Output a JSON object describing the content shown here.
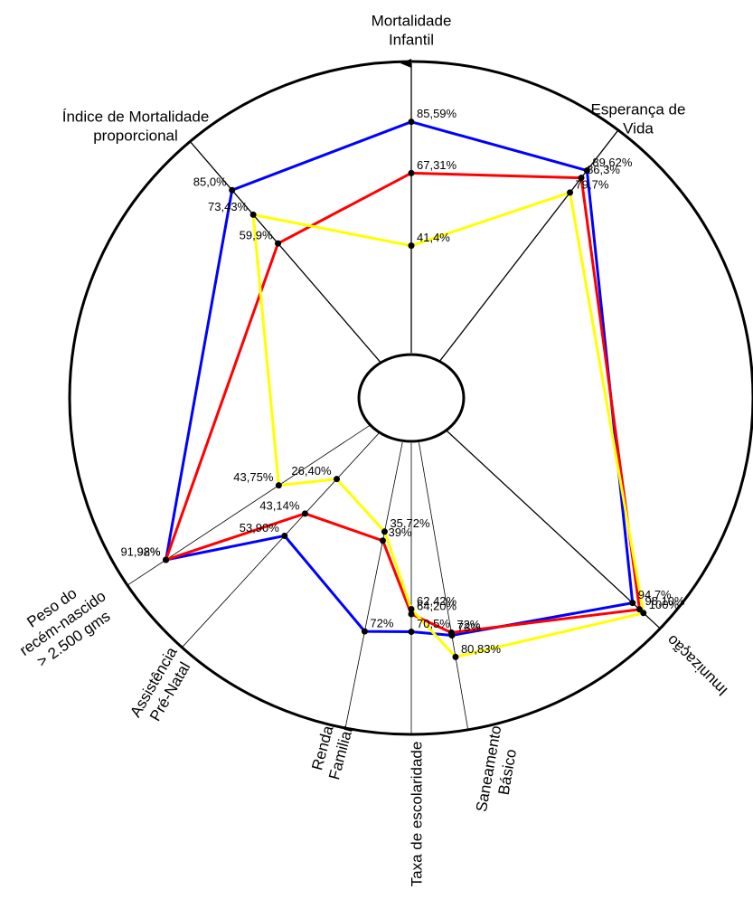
{
  "chart_data": {
    "type": "radar",
    "categories": [
      [
        "Mortalidade",
        "Infantil"
      ],
      [
        "Esperança de",
        "Vida"
      ],
      [
        "Imunização"
      ],
      [
        "Saneamento",
        "Básico"
      ],
      [
        "Taxa de escolaridade"
      ],
      [
        "Renda",
        "Familiar"
      ],
      [
        "Assistência",
        "Pré-Natal"
      ],
      [
        "Peso do",
        "recém-nascido",
        "> 2.500 gms"
      ],
      [
        "Índice de Mortalidade",
        "proporcional"
      ]
    ],
    "series": [
      {
        "color": "#0000ff",
        "values": [
          85.59,
          89.62,
          94.7,
          73,
          70.5,
          72,
          53.9,
          91.98,
          85.0
        ],
        "value_labels": [
          "85,59%",
          "89,62%",
          "94,7%",
          "73%",
          "70,5%",
          "72%",
          "53,90%",
          "91,98%",
          "85,0%"
        ]
      },
      {
        "color": "#ff0000",
        "values": [
          67.31,
          86.3,
          98.1,
          72,
          64.2,
          39,
          43.14,
          92,
          59.9
        ],
        "value_labels": [
          "67,31%",
          "86,3%",
          "98,10%",
          "72%",
          "64,20%",
          "39%",
          "43,14%",
          "92%",
          "59,9%"
        ]
      },
      {
        "color": "#ffff00",
        "values": [
          41.4,
          79.7,
          100,
          80.83,
          62.42,
          35.72,
          26.4,
          43.75,
          73.43
        ],
        "value_labels": [
          "41,4%",
          "79,7%",
          "100%",
          "80,83%",
          "62,42%",
          "35,72%",
          "26,40%",
          "43,75%",
          "73,43%"
        ]
      }
    ]
  }
}
